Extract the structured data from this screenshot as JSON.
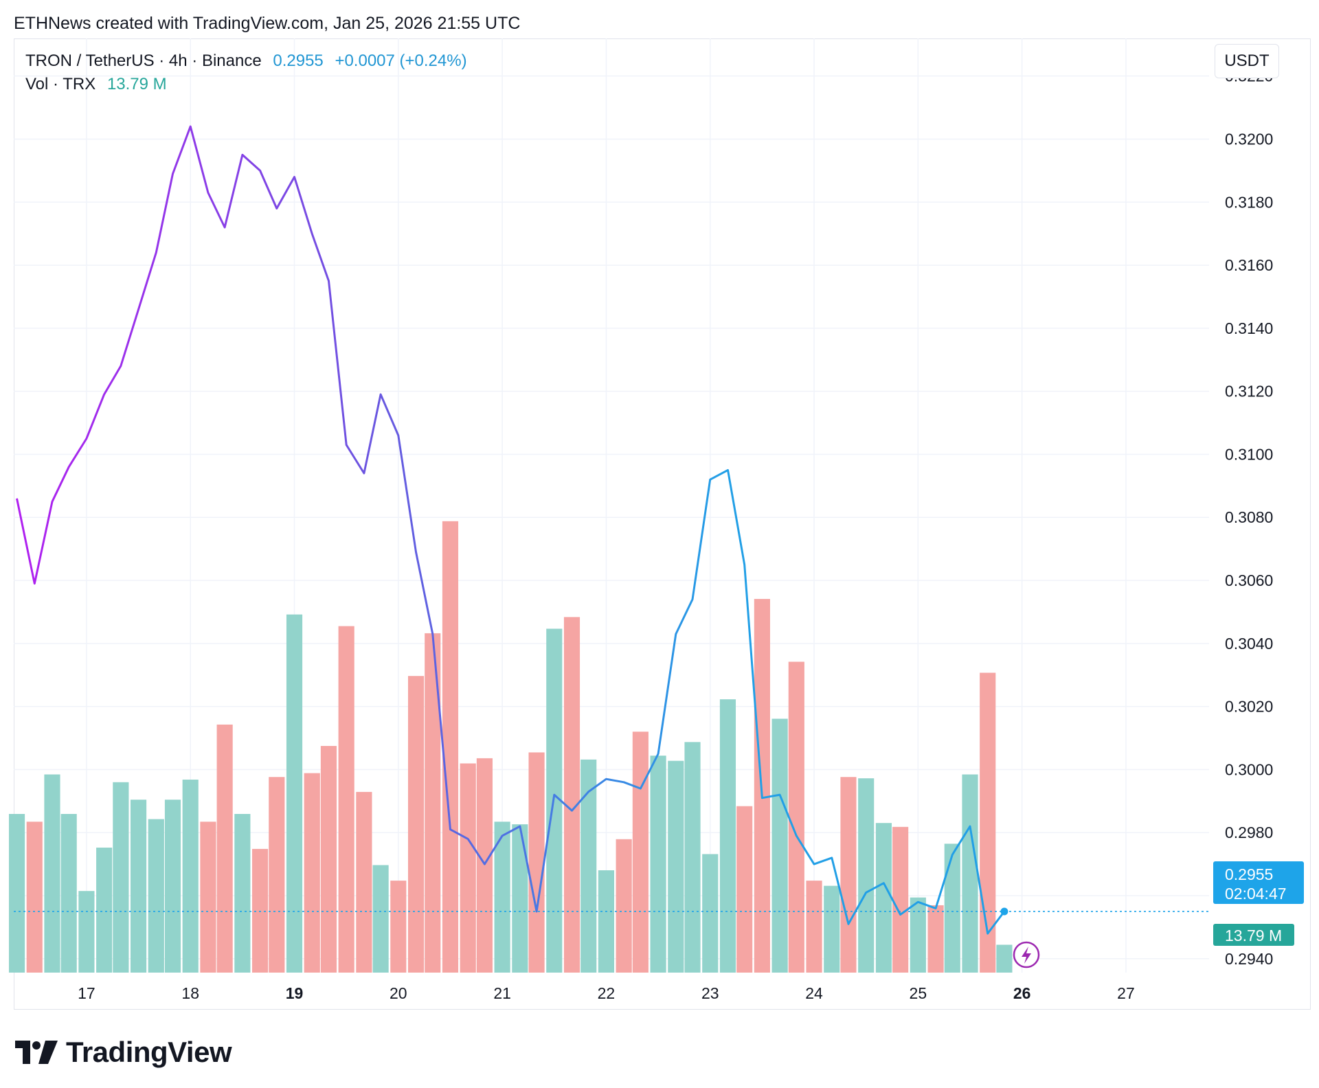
{
  "header": {
    "attribution": "ETHNews created with TradingView.com, Jan 25, 2026 21:55 UTC"
  },
  "legend": {
    "symbol": "TRON / TetherUS · 4h · Binance",
    "price": "0.2955",
    "change": "+0.0007 (+0.24%)",
    "vol_label": "Vol · TRX",
    "vol_value": "13.79 M"
  },
  "currency_button": "USDT",
  "price_tag": {
    "price": "0.2955",
    "countdown": "02:04:47"
  },
  "volume_tag": "13.79 M",
  "brand": "TradingView",
  "colors": {
    "line_start": "#b11ff0",
    "line_mid": "#6b55e0",
    "line_end": "#229fe6",
    "vol_up": "#92d3cb",
    "vol_down": "#f5a5a3",
    "price_tag": "#1ea4e9",
    "volume_tag": "#26a69a",
    "grid": "#f0f3fa"
  },
  "chart_data": {
    "type": "line",
    "interval": "4h",
    "x_ticks": [
      {
        "label": "17",
        "day": 17,
        "bold": false
      },
      {
        "label": "18",
        "day": 18,
        "bold": false
      },
      {
        "label": "19",
        "day": 19,
        "bold": true
      },
      {
        "label": "20",
        "day": 20,
        "bold": false
      },
      {
        "label": "21",
        "day": 21,
        "bold": false
      },
      {
        "label": "22",
        "day": 22,
        "bold": false
      },
      {
        "label": "23",
        "day": 23,
        "bold": false
      },
      {
        "label": "24",
        "day": 24,
        "bold": false
      },
      {
        "label": "25",
        "day": 25,
        "bold": false
      },
      {
        "label": "26",
        "day": 26,
        "bold": true
      },
      {
        "label": "27",
        "day": 27,
        "bold": false
      }
    ],
    "xlim": [
      16.3,
      27.8
    ],
    "y_ticks": [
      "0.3220",
      "0.3200",
      "0.3180",
      "0.3160",
      "0.3140",
      "0.3120",
      "0.3100",
      "0.3080",
      "0.3060",
      "0.3040",
      "0.3020",
      "0.3000",
      "0.2980",
      "0.2960",
      "0.2940"
    ],
    "ylim": [
      0.29356,
      0.32232
    ],
    "last_price": 0.2955,
    "x": [
      16.33,
      16.5,
      16.67,
      16.83,
      17,
      17.17,
      17.33,
      17.5,
      17.67,
      17.83,
      18,
      18.17,
      18.33,
      18.5,
      18.67,
      18.83,
      19,
      19.17,
      19.33,
      19.5,
      19.67,
      19.83,
      20,
      20.17,
      20.33,
      20.5,
      20.67,
      20.83,
      21,
      21.17,
      21.33,
      21.5,
      21.67,
      21.83,
      22,
      22.17,
      22.33,
      22.5,
      22.67,
      22.83,
      23,
      23.17,
      23.33,
      23.5,
      23.67,
      23.83,
      24,
      24.17,
      24.33,
      24.5,
      24.67,
      24.83,
      25,
      25.17,
      25.33,
      25.5,
      25.67,
      25.83
    ],
    "close": [
      0.3086,
      0.3059,
      0.3085,
      0.3096,
      0.3105,
      0.3119,
      0.3128,
      0.3146,
      0.3164,
      0.3189,
      0.3204,
      0.3183,
      0.3172,
      0.3195,
      0.319,
      0.3178,
      0.3188,
      0.317,
      0.3155,
      0.3103,
      0.3094,
      0.3119,
      0.3106,
      0.3069,
      0.3043,
      0.2981,
      0.2978,
      0.297,
      0.2979,
      0.2982,
      0.2955,
      0.2992,
      0.2987,
      0.2993,
      0.2997,
      0.2996,
      0.2994,
      0.3005,
      0.3043,
      0.3054,
      0.3092,
      0.3095,
      0.3065,
      0.2991,
      0.2992,
      0.2979,
      0.297,
      0.2972,
      0.2951,
      0.2961,
      0.2964,
      0.2954,
      0.2958,
      0.2956,
      0.2973,
      0.2982,
      0.2948,
      0.2955
    ],
    "volume": [
      2.45,
      2.33,
      3.06,
      2.45,
      1.26,
      1.93,
      2.94,
      2.67,
      2.37,
      2.67,
      2.98,
      2.33,
      3.83,
      2.45,
      1.91,
      3.02,
      5.53,
      3.08,
      3.5,
      5.35,
      2.79,
      1.66,
      1.42,
      4.58,
      5.24,
      6.97,
      3.23,
      3.31,
      2.33,
      2.29,
      3.4,
      5.31,
      5.49,
      3.29,
      1.58,
      2.06,
      3.72,
      3.35,
      3.27,
      3.56,
      1.83,
      4.22,
      2.57,
      5.77,
      3.92,
      4.8,
      1.42,
      1.34,
      3.02,
      3.0,
      2.31,
      2.25,
      1.16,
      1.04,
      1.99,
      3.06,
      4.63,
      0.43
    ],
    "volume_up": [
      true,
      false,
      true,
      true,
      true,
      true,
      true,
      true,
      true,
      true,
      true,
      false,
      false,
      true,
      false,
      false,
      true,
      false,
      false,
      false,
      false,
      true,
      false,
      false,
      false,
      false,
      false,
      false,
      true,
      true,
      false,
      true,
      false,
      true,
      true,
      false,
      false,
      true,
      true,
      true,
      true,
      true,
      false,
      false,
      true,
      false,
      false,
      true,
      false,
      true,
      true,
      false,
      true,
      false,
      true,
      true,
      false,
      true
    ],
    "volume_ylim": [
      0,
      14
    ]
  }
}
